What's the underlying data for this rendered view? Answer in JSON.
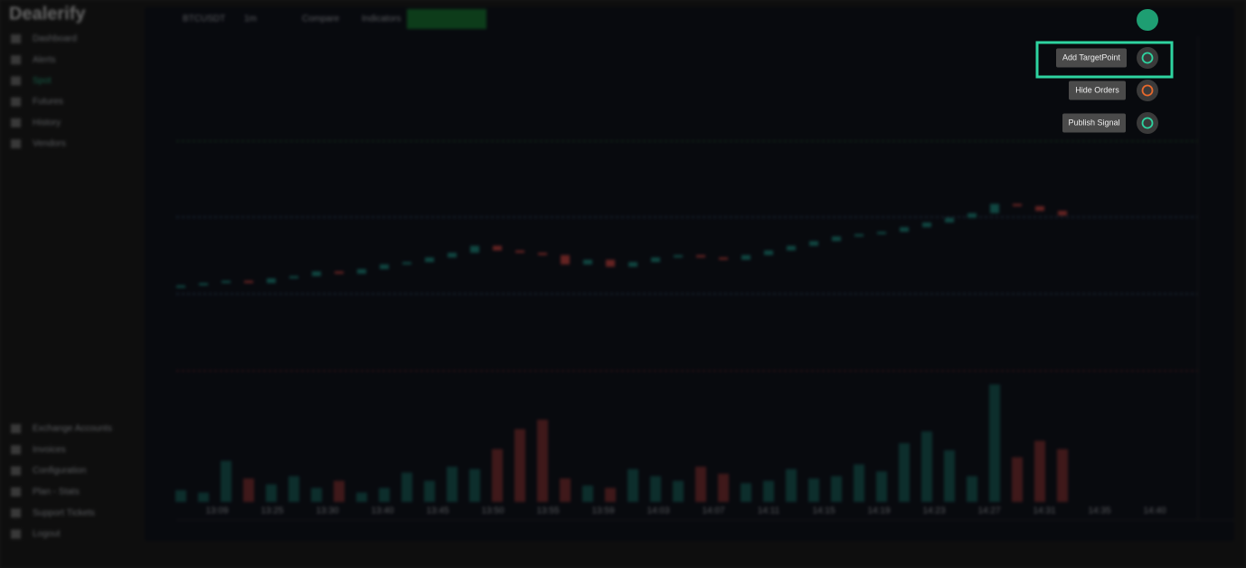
{
  "app": {
    "brand": "Dealerify",
    "nav": [
      "Dashboard",
      "Alerts",
      "Spot",
      "Futures",
      "History",
      "Vendors"
    ],
    "nav_bottom": [
      "Exchange Accounts",
      "Invoices",
      "Configuration",
      "Plan - Stats",
      "Support Tickets",
      "Logout"
    ]
  },
  "toolbar": {
    "symbol": "BTCUSDT",
    "interval": "1m",
    "compare": "Compare",
    "indicators": "Indicators"
  },
  "chart": {
    "type": "candlestick",
    "time_labels": [
      "13:09",
      "13:25",
      "13:30",
      "13:40",
      "13:45",
      "13:50",
      "13:55",
      "13:59",
      "14:03",
      "14:07",
      "14:11",
      "14:15",
      "14:19",
      "14:23",
      "14:27",
      "14:31",
      "14:35",
      "14:40"
    ],
    "open": [
      46,
      46.5,
      47,
      47.5,
      47,
      48,
      48.5,
      49.5,
      49,
      50,
      51,
      51.5,
      52.5,
      53.5,
      55,
      54,
      53.5,
      53,
      51,
      52,
      50.5,
      51.5,
      52.5,
      53,
      52.5,
      52,
      53,
      54,
      55,
      56,
      57,
      57.5,
      58,
      59,
      60,
      61,
      62,
      64,
      63.5,
      62.5
    ],
    "close": [
      46.5,
      47,
      47.5,
      47,
      48,
      48.5,
      49.5,
      49,
      50,
      51,
      51.5,
      52.5,
      53.5,
      55,
      54,
      53.5,
      53,
      51,
      52,
      50.5,
      51.5,
      52.5,
      53,
      52.5,
      52,
      53,
      54,
      55,
      56,
      57,
      57.5,
      58,
      59,
      60,
      61,
      62,
      64,
      63.5,
      62.5,
      61.5
    ],
    "volume": [
      10,
      8,
      35,
      20,
      15,
      22,
      12,
      18,
      8,
      12,
      25,
      18,
      30,
      28,
      45,
      62,
      70,
      20,
      14,
      12,
      28,
      22,
      18,
      30,
      24,
      16,
      18,
      28,
      20,
      22,
      32,
      26,
      50,
      60,
      44,
      22,
      100,
      38,
      52,
      45
    ],
    "ylim": [
      0,
      100
    ],
    "volume_ylim": [
      0,
      100
    ],
    "colors": {
      "up": "#26a69a",
      "down": "#ef5350"
    }
  },
  "actions": [
    "Add TargetPoint",
    "Hide Orders",
    "Publish Signal"
  ]
}
